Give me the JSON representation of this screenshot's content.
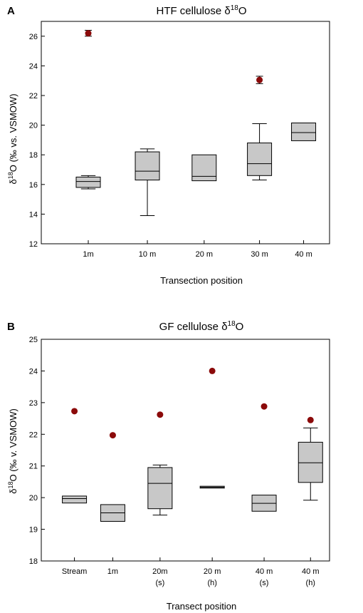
{
  "chart_data": [
    {
      "type": "box",
      "panel": "A",
      "title": "HTF cellulose δ",
      "title_sup": "18",
      "title_after": "O",
      "xlabel": "Transection position",
      "ylabel_pre": "δ",
      "ylabel_sup": "18",
      "ylabel_post": "O (‰ vs. VSMOW)",
      "ylim": [
        12,
        27
      ],
      "yticks": [
        12,
        14,
        16,
        18,
        20,
        22,
        24,
        26
      ],
      "categories": [
        {
          "label": [
            "1m"
          ],
          "min": 15.7,
          "q1": 15.8,
          "median": 16.2,
          "q3": 16.5,
          "max": 16.6
        },
        {
          "label": [
            "10 m"
          ],
          "min": 13.9,
          "q1": 16.3,
          "median": 16.9,
          "q3": 18.2,
          "max": 18.4
        },
        {
          "label": [
            "20 m"
          ],
          "min": 16.25,
          "q1": 16.25,
          "median": 16.55,
          "q3": 18.0,
          "max": 18.0
        },
        {
          "label": [
            "30 m"
          ],
          "min": 16.3,
          "q1": 16.6,
          "median": 17.4,
          "q3": 18.8,
          "max": 20.1
        },
        {
          "label": [
            "40 m"
          ],
          "min": 18.95,
          "q1": 18.95,
          "median": 19.5,
          "q3": 20.15,
          "max": 20.15
        }
      ],
      "points": [
        {
          "x": 0,
          "y": 26.2,
          "err": 0.2
        },
        {
          "x": 3,
          "y": 23.05,
          "err": 0.25
        }
      ],
      "colors": {
        "box_fill": "#c8c8c8",
        "point": "#8b0a0a"
      },
      "grid": false
    },
    {
      "type": "box",
      "panel": "B",
      "title": "GF cellulose δ",
      "title_sup": "18",
      "title_after": "O",
      "xlabel": "Transect position",
      "ylabel_pre": "δ",
      "ylabel_sup": "18",
      "ylabel_post": "O (‰ v. VSMOW)",
      "ylim": [
        18,
        25
      ],
      "yticks": [
        18,
        19,
        20,
        21,
        22,
        23,
        24,
        25
      ],
      "categories": [
        {
          "label": [
            "Stream"
          ],
          "min": 19.83,
          "q1": 19.83,
          "median": 19.97,
          "q3": 20.05,
          "max": 20.05
        },
        {
          "label": [
            "1m"
          ],
          "min": 19.25,
          "q1": 19.25,
          "median": 19.52,
          "q3": 19.78,
          "max": 19.78
        },
        {
          "label": [
            "20m",
            "(s)"
          ],
          "min": 19.45,
          "q1": 19.65,
          "median": 20.45,
          "q3": 20.95,
          "max": 21.03
        },
        {
          "label": [
            "20 m",
            "(h)"
          ],
          "min": 20.3,
          "q1": 20.3,
          "median": 20.33,
          "q3": 20.36,
          "max": 20.36
        },
        {
          "label": [
            "40 m",
            "(s)"
          ],
          "min": 19.57,
          "q1": 19.57,
          "median": 19.82,
          "q3": 20.08,
          "max": 20.08
        },
        {
          "label": [
            "40 m",
            "(h)"
          ],
          "min": 19.92,
          "q1": 20.48,
          "median": 21.1,
          "q3": 21.75,
          "max": 22.2
        }
      ],
      "points": [
        {
          "x": 0,
          "y": 22.73
        },
        {
          "x": 1,
          "y": 21.97
        },
        {
          "x": 2,
          "y": 22.62
        },
        {
          "x": 3,
          "y": 24.0
        },
        {
          "x": 4,
          "y": 22.88
        },
        {
          "x": 5,
          "y": 22.45
        }
      ],
      "colors": {
        "box_fill": "#c8c8c8",
        "point": "#8b0a0a"
      },
      "grid": false
    }
  ]
}
